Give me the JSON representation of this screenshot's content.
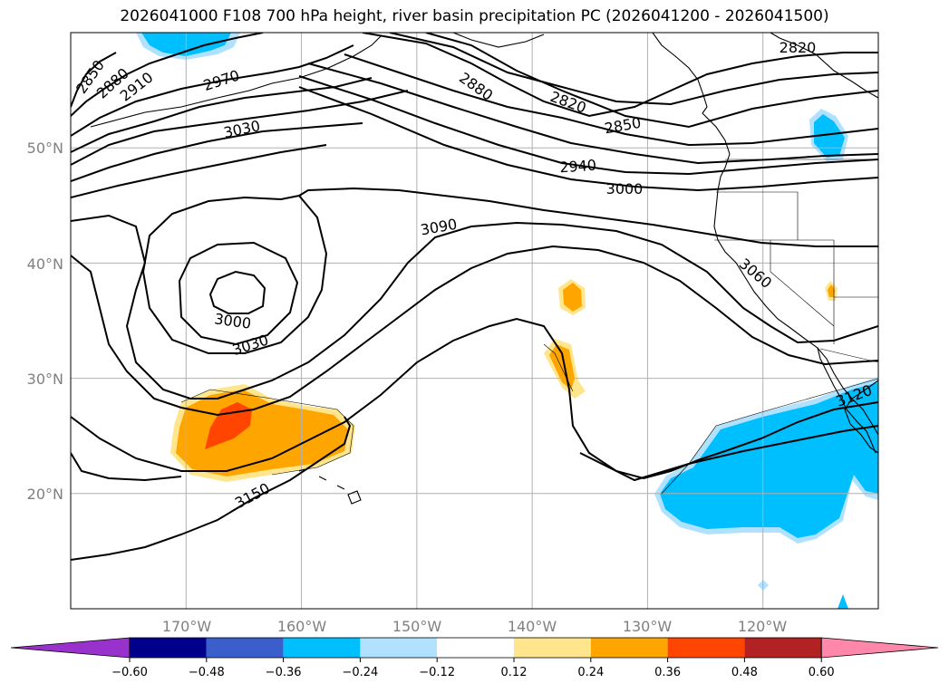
{
  "title": "2026041000 F108 700 hPa height, river basin precipitation PC (2026041200 - 2026041500)",
  "map": {
    "lon_range": [
      -180,
      -110
    ],
    "lat_range": [
      10,
      60
    ],
    "lon_ticks": [
      "170°W",
      "160°W",
      "150°W",
      "140°W",
      "130°W",
      "120°W"
    ],
    "lat_ticks": [
      "20°N",
      "30°N",
      "40°N",
      "50°N"
    ]
  },
  "contour_labels": [
    "2850",
    "2880",
    "2910",
    "2970",
    "3030",
    "2880",
    "2820",
    "2820",
    "2850",
    "2940",
    "3000",
    "3090",
    "3000",
    "3030",
    "3060",
    "3120",
    "3150"
  ],
  "colorbar": {
    "ticks": [
      "−0.60",
      "−0.48",
      "−0.36",
      "−0.24",
      "−0.12",
      "0.12",
      "0.24",
      "0.36",
      "0.48",
      "0.60"
    ],
    "colors": [
      "#9932cc",
      "#00008b",
      "#3a5fcd",
      "#00bfff",
      "#b0e2ff",
      "#ffffff",
      "#ffe68c",
      "#ffa500",
      "#ff4500",
      "#b22222",
      "#ff88aa"
    ]
  }
}
